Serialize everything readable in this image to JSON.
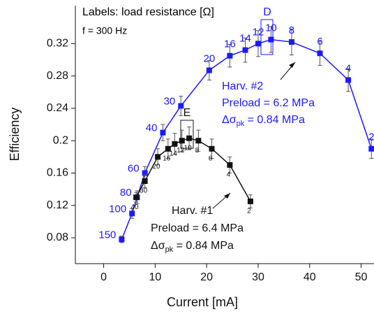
{
  "chart_data": {
    "type": "scatter",
    "x_label": "Current [mA]",
    "y_label": "Efficiency",
    "xlim": [
      -5.5,
      52.5
    ],
    "xticks": [
      0,
      10,
      20,
      30,
      40,
      50
    ],
    "ylim": [
      0.048,
      0.367
    ],
    "yticks": [
      0.08,
      0.12,
      0.16,
      0.2,
      0.24,
      0.28,
      0.32
    ],
    "series": [
      {
        "name": "Harv. #2",
        "color": "#1a1aff",
        "x": [
          3.5,
          5.5,
          6.5,
          8,
          11.5,
          15,
          20.5,
          24.5,
          27.5,
          30,
          32.5,
          36.5,
          42,
          47.5,
          52
        ],
        "values": [
          0.078,
          0.11,
          0.13,
          0.16,
          0.21,
          0.243,
          0.287,
          0.305,
          0.312,
          0.32,
          0.325,
          0.322,
          0.308,
          0.275,
          0.19
        ],
        "errors": [
          0.004,
          0.006,
          0.008,
          0.008,
          0.01,
          0.012,
          0.012,
          0.014,
          0.015,
          0.016,
          0.016,
          0.016,
          0.015,
          0.014,
          0.012
        ],
        "point_labels": [
          "150",
          "100",
          "80",
          "60",
          "40",
          "30",
          "20",
          "16",
          "14",
          "12",
          "10",
          "8",
          "6",
          "4",
          "2"
        ]
      },
      {
        "name": "Harv. #1",
        "color": "#111111",
        "x": [
          6.3,
          8,
          10.5,
          12.5,
          13.8,
          15.2,
          16.6,
          18.4,
          21,
          24.5,
          28.5
        ],
        "values": [
          0.13,
          0.15,
          0.18,
          0.19,
          0.196,
          0.2,
          0.203,
          0.2,
          0.19,
          0.17,
          0.125
        ],
        "errors": [
          0.006,
          0.008,
          0.01,
          0.012,
          0.013,
          0.013,
          0.014,
          0.013,
          0.012,
          0.01,
          0.008
        ],
        "point_labels": [
          "40",
          "30",
          "20",
          "16",
          "14",
          "12",
          "10",
          "8",
          "6",
          "4",
          "2"
        ]
      }
    ],
    "annotations": {
      "labels_note": "Labels: load resistance [Ω]",
      "frequency": "f = 300 Hz",
      "box_d": "D",
      "box_e": "E",
      "harv2_name": "Harv. #2",
      "harv2_preload": "Preload = 6.2 MPa",
      "harv2_sigma": {
        "symbol": "Δσ",
        "sub": "pk",
        "rest": " = 0.84 MPa"
      },
      "harv1_name": "Harv. #1",
      "harv1_preload": "Preload = 6.4 MPa",
      "harv1_sigma": {
        "symbol": "Δσ",
        "sub": "pk",
        "rest": " = 0.84 MPa"
      }
    }
  }
}
